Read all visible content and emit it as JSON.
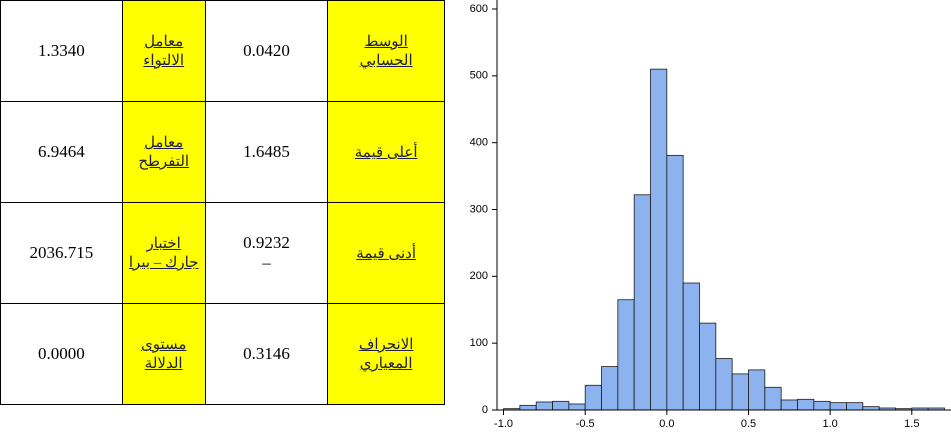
{
  "table": {
    "rows": [
      [
        "الوسط\nالحسابي",
        "0.0420",
        "معامل\nالالتواء",
        "1.3340"
      ],
      [
        "أعلى قيمة",
        "1.6485",
        "معامل\nالتفرطح",
        "6.9464"
      ],
      [
        "أدنى قيمة",
        "0.9232\n–",
        "اختبار\nجارك – بيرا",
        "2036.715"
      ],
      [
        "الانحراف\nالمعياري",
        "0.3146",
        "مستوى\nالدلالة",
        "0.0000"
      ]
    ]
  },
  "chart_data": {
    "type": "histogram",
    "color": "#8db3ef",
    "edge_color": "#1a1a1a",
    "bins": [
      -1.0,
      -0.9,
      -0.8,
      -0.7,
      -0.6,
      -0.5,
      -0.4,
      -0.3,
      -0.2,
      -0.1,
      0.0,
      0.1,
      0.2,
      0.3,
      0.4,
      0.5,
      0.6,
      0.7,
      0.8,
      0.9,
      1.0,
      1.1,
      1.2,
      1.3,
      1.4,
      1.5,
      1.6,
      1.7
    ],
    "values": [
      2,
      7,
      12,
      13,
      9,
      37,
      65,
      165,
      322,
      510,
      381,
      190,
      130,
      77,
      54,
      60,
      34,
      15,
      16,
      13,
      11,
      11,
      5,
      3,
      2,
      3,
      3
    ],
    "xlim": [
      -1.04,
      1.74
    ],
    "ylim": [
      0,
      603
    ],
    "xticks": [
      {
        "value": -1.0,
        "label": "-1.0"
      },
      {
        "value": -0.5,
        "label": "-0.5"
      },
      {
        "value": 0.0,
        "label": "0.0"
      },
      {
        "value": 0.5,
        "label": "0.5"
      },
      {
        "value": 1.0,
        "label": "1.0"
      },
      {
        "value": 1.5,
        "label": "1.5"
      }
    ],
    "yticks": [
      0,
      100,
      200,
      300,
      400,
      500,
      600
    ]
  }
}
